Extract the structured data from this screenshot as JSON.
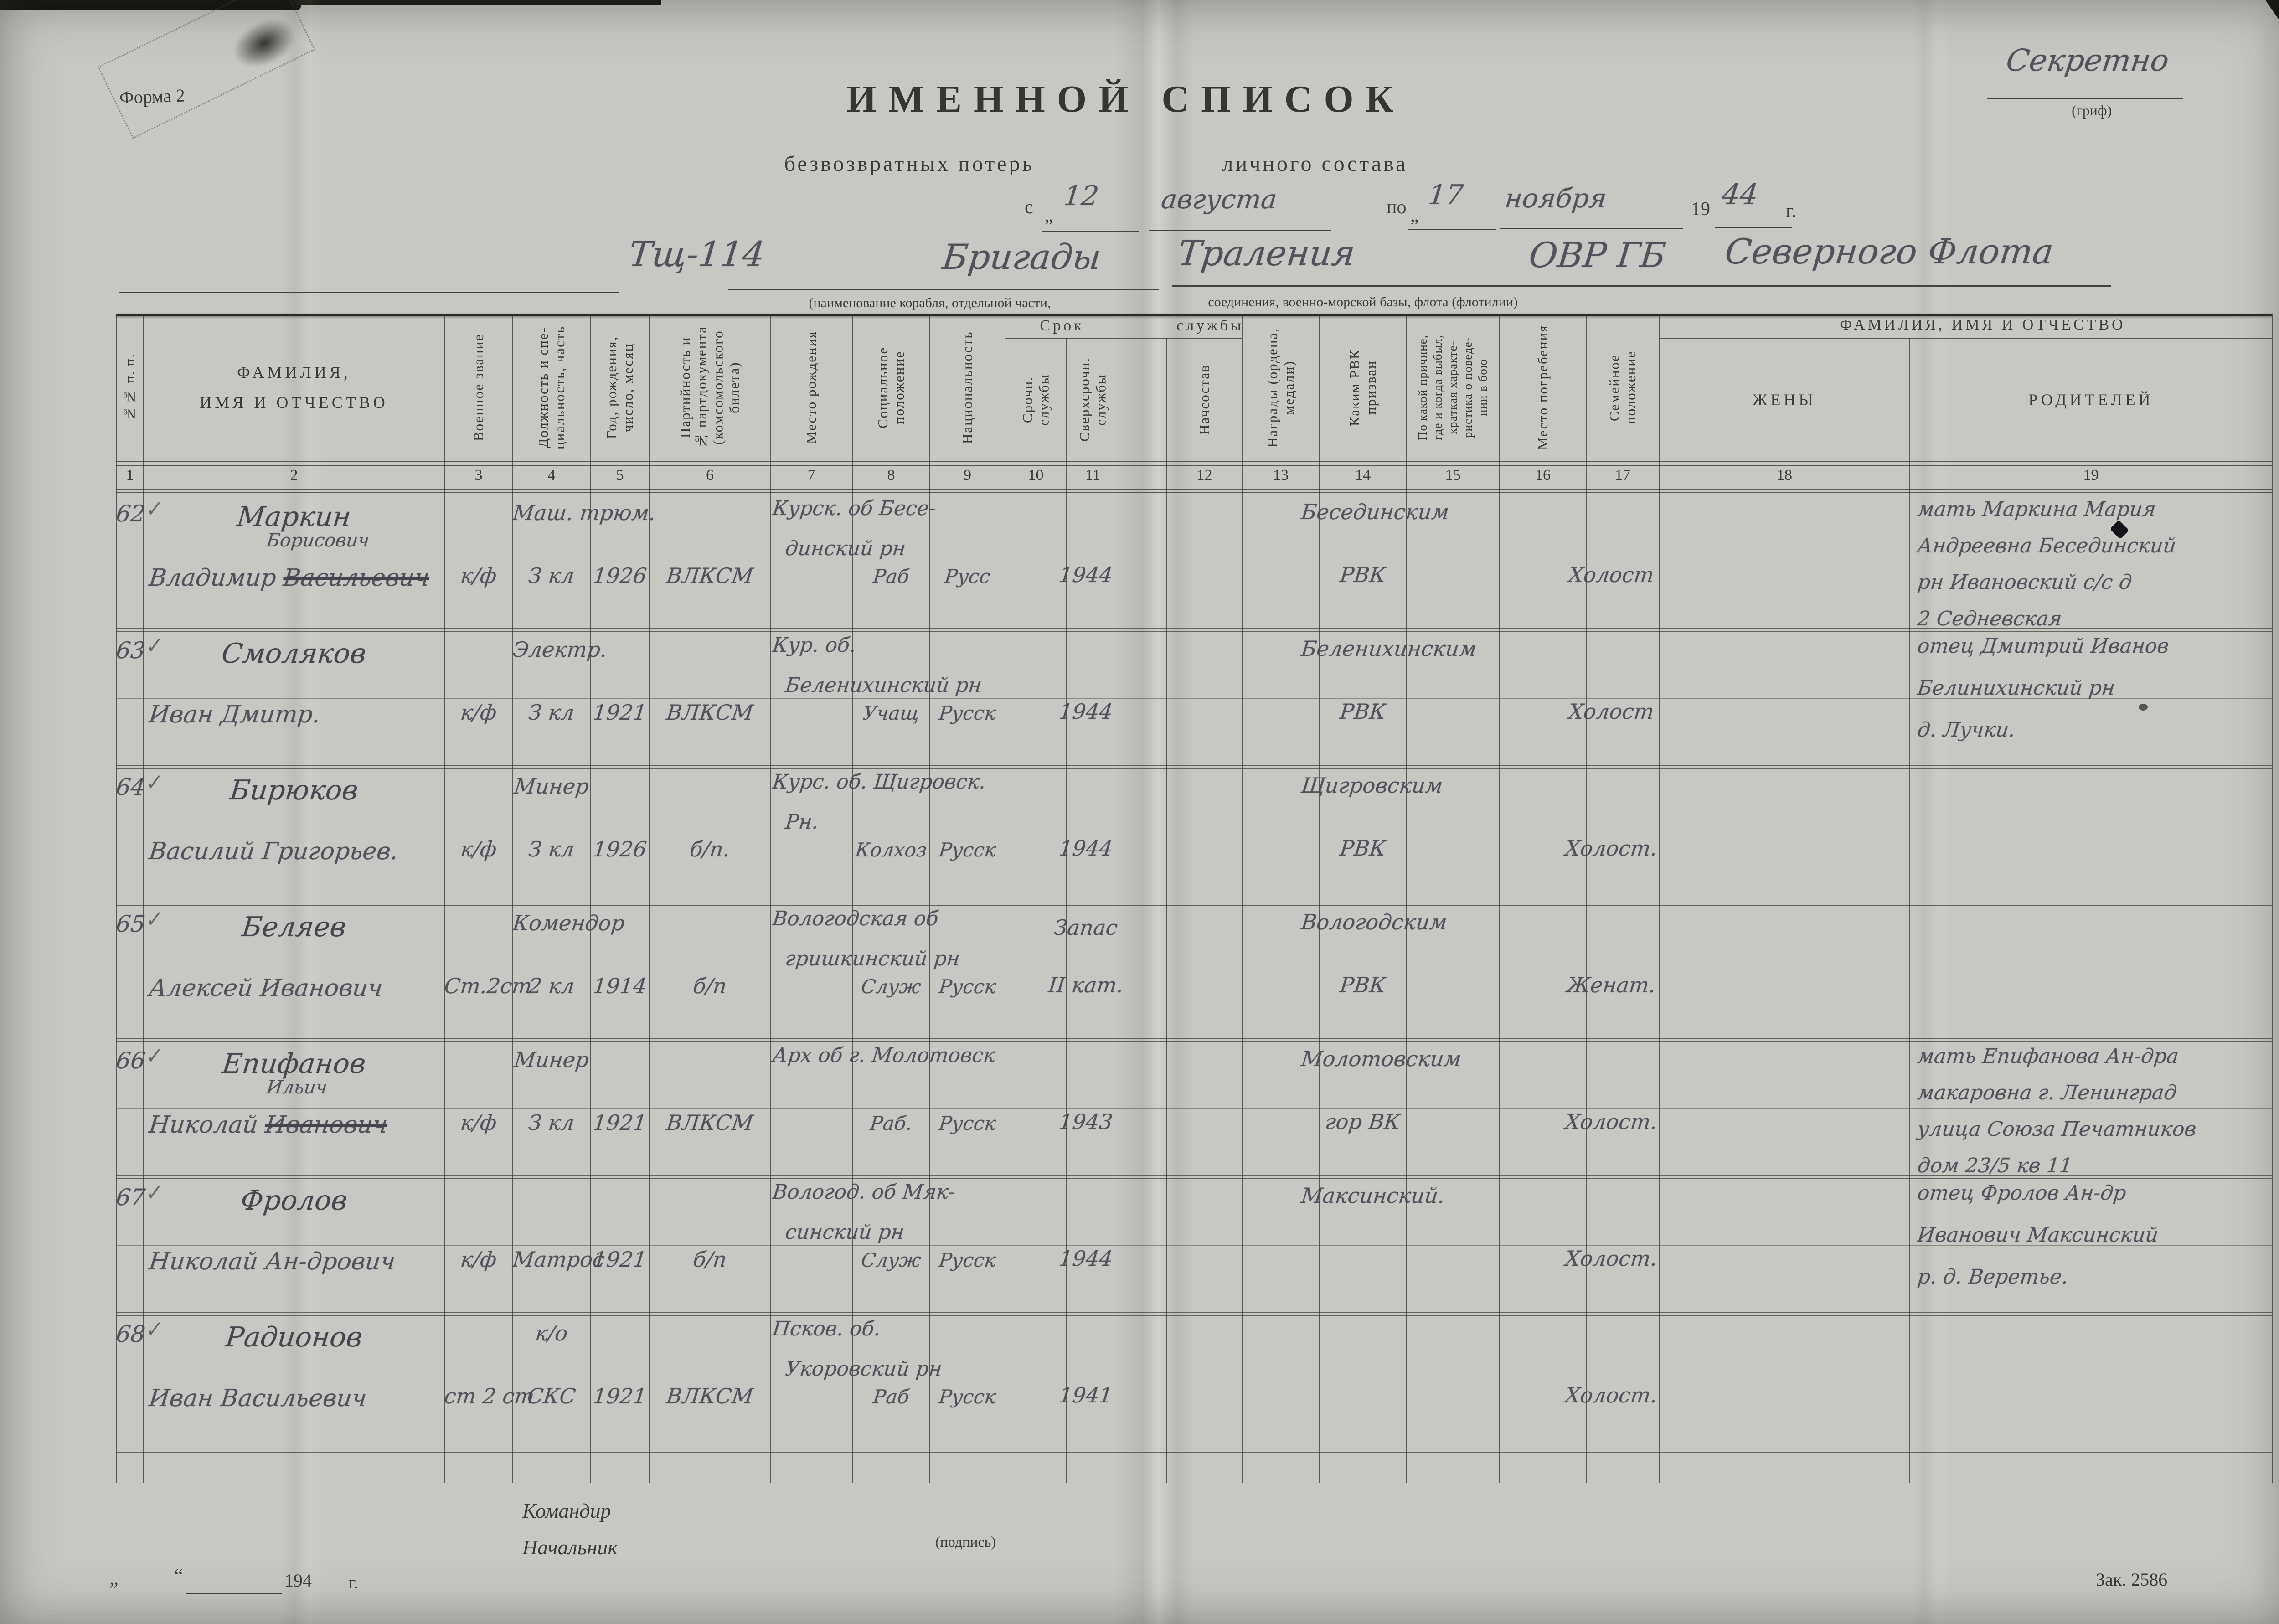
{
  "page": {
    "form_label": "Форма 2",
    "classification": "Секретно",
    "classification_caption": "(гриф)",
    "order_number": "Зак. 2586"
  },
  "title": {
    "main": "ИМЕННОЙ  СПИСОК",
    "sub_left": "безвозвратных потерь",
    "sub_right": "личного состава"
  },
  "period": {
    "prefix": "с",
    "quote_open": "„",
    "from_day": "12",
    "from_month": "августа",
    "to_label": "по",
    "quote_open2": "„",
    "to_day": "17",
    "to_month": "ноября",
    "year_prefix": "19",
    "year": "44",
    "year_suffix": "г."
  },
  "unit": {
    "name_parts": [
      "Тщ-114",
      "Бригады",
      "Траления",
      "ОВР ГБ",
      "Северного Флота"
    ],
    "caption_left": "(наименование корабля, отдельной части,",
    "caption_right": "соединения, военно-морской базы, флота (флотилии)"
  },
  "table": {
    "groups": {
      "service_term_left": "Срок",
      "service_term_right": "службы",
      "fio": "ФАМИЛИЯ, ИМЯ И ОТЧЕСТВО"
    },
    "columns": [
      {
        "num": "1",
        "label": "№№ п. п."
      },
      {
        "num": "2",
        "label": "ФАМИЛИЯ,\nИМЯ И ОТЧЕСТВО"
      },
      {
        "num": "3",
        "label": "Военное звание"
      },
      {
        "num": "4",
        "label": "Должность и спе-\nциальность, часть"
      },
      {
        "num": "5",
        "label": "Год, рождения,\nчисло, месяц"
      },
      {
        "num": "6",
        "label": "Партийность и\n№ партдокумента\n(комсомольского\nбилета)"
      },
      {
        "num": "7",
        "label": "Место рождения"
      },
      {
        "num": "8",
        "label": "Социальное\nположение"
      },
      {
        "num": "9",
        "label": "Национальность"
      },
      {
        "num": "10",
        "label": "Срочн.\nслужбы"
      },
      {
        "num": "11",
        "label": "Сверхсрочн.\nслужбы"
      },
      {
        "num": "12",
        "label": "Начсостав"
      },
      {
        "num": "13",
        "label": "Награды (ордена,\nмедали)"
      },
      {
        "num": "14",
        "label": "Каким РВК\nпризван"
      },
      {
        "num": "15",
        "label": "По какой причине,\nгде и когда выбыл,\nкраткая характе-\nристика о поведе-\nнии в бою"
      },
      {
        "num": "16",
        "label": "Место погребения"
      },
      {
        "num": "17",
        "label": "Семейное\nположение"
      },
      {
        "num": "18",
        "label": "ЖЕНЫ"
      },
      {
        "num": "19",
        "label": "РОДИТЕЛЕЙ"
      }
    ],
    "rows": [
      {
        "num": "62",
        "check": "✓",
        "surname": "Маркин",
        "given": "Владимир",
        "crossed": "Васильевич",
        "inserted": "Борисович",
        "rank": "к/ф",
        "duty1": "Маш. трюм.",
        "duty2": "З кл",
        "birth_year": "1926",
        "party": "ВЛКСМ",
        "birthplace1": "Курск. об Бесе-",
        "birthplace2": "динский рн",
        "social": "Раб",
        "nationality": "Русс",
        "service1": "",
        "service2": "1944",
        "rvk1": "Бесединским",
        "rvk2": "РВК",
        "family": "Холост",
        "parents": [
          "мать Маркина Мария",
          "Андреевна Бесединский",
          "рн Ивановский с/с д",
          "2 Седневская"
        ]
      },
      {
        "num": "63",
        "check": "✓",
        "surname": "Смоляков",
        "given": "Иван Дмитр.",
        "rank": "к/ф",
        "duty1": "Электр.",
        "duty2": "З кл",
        "birth_year": "1921",
        "party": "ВЛКСМ",
        "birthplace1": "Кур. об.",
        "birthplace2": "Беленихинский рн",
        "social": "Учащ",
        "nationality": "Русск",
        "service1": "",
        "service2": "1944",
        "rvk1": "Беленихинским",
        "rvk2": "РВК",
        "family": "Холост",
        "parents": [
          "отец Дмитрий Иванов",
          "Белинихинский рн",
          "д. Лучки."
        ]
      },
      {
        "num": "64",
        "check": "✓",
        "surname": "Бирюков",
        "given": "Василий Григорьев.",
        "rank": "к/ф",
        "duty1": "Минер",
        "duty2": "З кл",
        "birth_year": "1926",
        "party": "б/п.",
        "birthplace1": "Курс. об. Щигровск.",
        "birthplace2": "Рн.",
        "social": "Колхоз",
        "nationality": "Русск",
        "service1": "",
        "service2": "1944",
        "rvk1": "Щигровским",
        "rvk2": "РВК",
        "family": "Холост.",
        "parents": []
      },
      {
        "num": "65",
        "check": "✓",
        "surname": "Беляев",
        "given": "Алексей Иванович",
        "rank": "Ст.2ст",
        "duty1": "Комендор",
        "duty2": "2 кл",
        "birth_year": "1914",
        "party": "б/п",
        "birthplace1": "Вологодская об",
        "birthplace2": "гришкинский рн",
        "social": "Служ",
        "nationality": "Русск",
        "service1": "Запас",
        "service2": "II кат.",
        "rvk1": "Вологодским",
        "rvk2": "РВК",
        "family": "Женат.",
        "parents": []
      },
      {
        "num": "66",
        "check": "✓",
        "surname": "Епифанов",
        "given": "Николай",
        "crossed": "Иванович",
        "inserted": "Ильич",
        "rank": "к/ф",
        "duty1": "Минер",
        "duty2": "З кл",
        "birth_year": "1921",
        "party": "ВЛКСМ",
        "birthplace1": "Арх об г. Молотовск",
        "birthplace2": "",
        "social": "Раб.",
        "nationality": "Русск",
        "service1": "",
        "service2": "1943",
        "rvk1": "Молотовским",
        "rvk2": "гор ВК",
        "family": "Холост.",
        "parents": [
          "мать Епифанова Ан-дра",
          "макаровна г. Ленинград",
          "улица Союза Печатников",
          "дом 23/5 кв 11"
        ]
      },
      {
        "num": "67",
        "check": "✓",
        "surname": "Фролов",
        "given": "Николай Ан-дрович",
        "rank": "к/ф",
        "duty1": "",
        "duty2": "Матрос",
        "birth_year": "1921",
        "party": "б/п",
        "birthplace1": "Вологод. об Мяк-",
        "birthplace2": "синский рн",
        "social": "Служ",
        "nationality": "Русск",
        "service1": "",
        "service2": "1944",
        "rvk1": "Максинский.",
        "rvk2": "",
        "family": "Холост.",
        "parents": [
          "отец Фролов Ан-др",
          "Иванович Максинский",
          "р. д. Веретье."
        ]
      },
      {
        "num": "68",
        "check": "✓",
        "surname": "Радионов",
        "given": "Иван Васильевич",
        "rank": "ст 2 ст",
        "duty1": "к/о",
        "duty2": "СКС",
        "birth_year": "1921",
        "party": "ВЛКСМ",
        "birthplace1": "Псков. об.",
        "birthplace2": "Укоровский рн",
        "social": "Раб",
        "nationality": "Русск",
        "service1": "",
        "service2": "1941",
        "rvk1": "",
        "rvk2": "",
        "family": "Холост.",
        "parents": []
      }
    ]
  },
  "footer": {
    "commander": "Командир",
    "chief": "Начальник",
    "signature_caption": "(подпись)",
    "date_quote_open": "„",
    "date_quote_close": "“",
    "date_year": "194",
    "date_year_suffix": "г."
  }
}
